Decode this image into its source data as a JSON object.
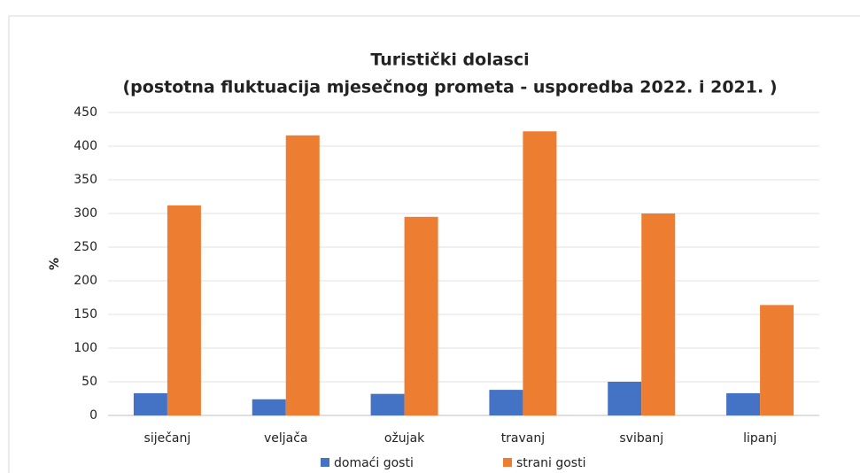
{
  "chart_data": {
    "type": "bar",
    "title": [
      "Turistički dolasci",
      "(postotna fluktuacija mjesečnog prometa - usporedba 2022. i 2021. )"
    ],
    "y_label": "%",
    "categories": [
      "siječanj",
      "veljača",
      "ožujak",
      "travanj",
      "svibanj",
      "lipanj"
    ],
    "series": [
      {
        "name": "domaći gosti",
        "color": "#4472c4",
        "values": [
          33,
          24,
          32,
          38,
          50,
          33
        ]
      },
      {
        "name": "strani gosti",
        "color": "#ed7d31",
        "values": [
          312,
          416,
          295,
          422,
          300,
          164
        ]
      }
    ],
    "ylim": [
      0,
      450
    ],
    "yticks": [
      0,
      50,
      100,
      150,
      200,
      250,
      300,
      350,
      400,
      450
    ],
    "grid": true,
    "legend": "bottom"
  }
}
